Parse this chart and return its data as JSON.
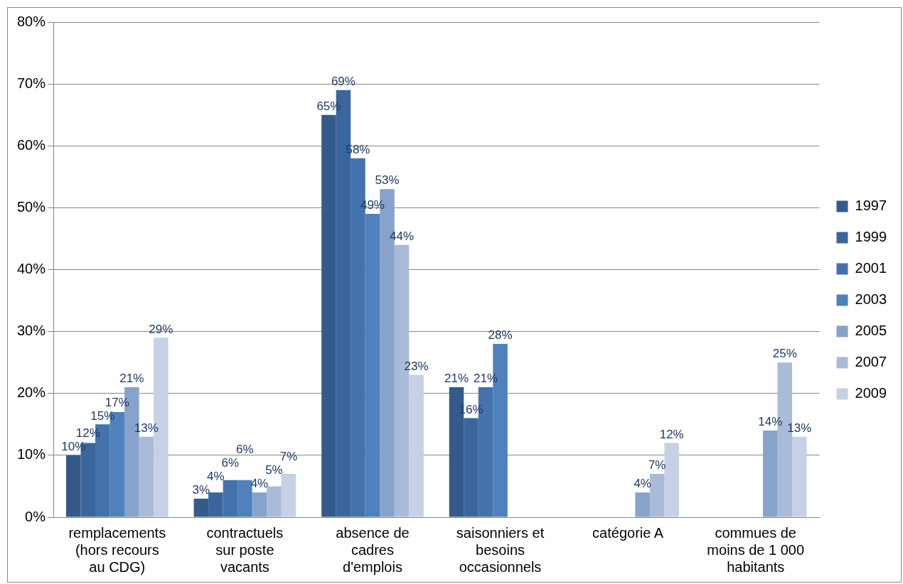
{
  "chart_data": {
    "type": "bar",
    "categories": [
      "remplacements (hors recours au CDG)",
      "contractuels sur poste vacants",
      "absence de cadres d'emplois",
      "saisonniers et besoins occasionnels",
      "catégorie A",
      "commues de moins de 1 000 habitants"
    ],
    "series": [
      {
        "name": "1997",
        "color": "#335a8a",
        "values": [
          10,
          3,
          65,
          21,
          null,
          null
        ],
        "value_labels": [
          "10%",
          "3%",
          "65%",
          "21%",
          null,
          null
        ]
      },
      {
        "name": "1999",
        "color": "#3b669d",
        "values": [
          12,
          4,
          69,
          16,
          null,
          null
        ],
        "value_labels": [
          "12%",
          "4%",
          "69%",
          "16%",
          null,
          null
        ]
      },
      {
        "name": "2001",
        "color": "#4472ad",
        "values": [
          15,
          6,
          58,
          21,
          null,
          null
        ],
        "value_labels": [
          "15%",
          "6%",
          "58%",
          "21%",
          null,
          null
        ]
      },
      {
        "name": "2003",
        "color": "#4f81bd",
        "values": [
          17,
          6,
          49,
          28,
          null,
          null
        ],
        "value_labels": [
          "17%",
          "6%",
          "49%",
          "28%",
          null,
          null
        ]
      },
      {
        "name": "2005",
        "color": "#87a2cb",
        "values": [
          21,
          4,
          53,
          null,
          4,
          14
        ],
        "value_labels": [
          "21%",
          "4%",
          "53%",
          null,
          "4%",
          "14%"
        ]
      },
      {
        "name": "2007",
        "color": "#a9bbd9",
        "values": [
          13,
          5,
          44,
          null,
          7,
          25
        ],
        "value_labels": [
          "13%",
          "5%",
          "44%",
          null,
          "7%",
          "25%"
        ]
      },
      {
        "name": "2009",
        "color": "#c6d1e5",
        "values": [
          29,
          7,
          23,
          null,
          12,
          13
        ],
        "value_labels": [
          "29%",
          "7%",
          "23%",
          null,
          "12%",
          "13%"
        ]
      }
    ],
    "ylim": [
      0,
      80
    ],
    "yticks": [
      {
        "value": 0,
        "label": "0%"
      },
      {
        "value": 10,
        "label": "10%"
      },
      {
        "value": 20,
        "label": "20%"
      },
      {
        "value": 30,
        "label": "30%"
      },
      {
        "value": 40,
        "label": "40%"
      },
      {
        "value": 50,
        "label": "50%"
      },
      {
        "value": 60,
        "label": "60%"
      },
      {
        "value": 70,
        "label": "70%"
      },
      {
        "value": 80,
        "label": "80%"
      }
    ],
    "grid": "y",
    "legend": "right"
  }
}
